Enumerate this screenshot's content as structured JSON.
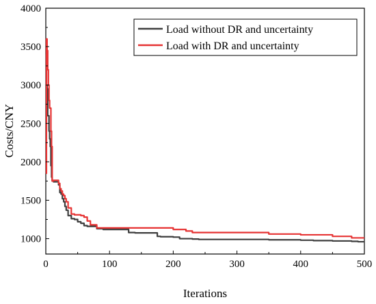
{
  "chart_data": {
    "type": "line",
    "title": "",
    "xlabel": "Iterations",
    "ylabel": "Costs/CNY",
    "xlim": [
      0,
      500
    ],
    "ylim": [
      800,
      4000
    ],
    "xticks": [
      0,
      100,
      200,
      300,
      400,
      500
    ],
    "yticks": [
      1000,
      1500,
      2000,
      2500,
      3000,
      3500,
      4000
    ],
    "grid": false,
    "legend_position": "top-right",
    "series": [
      {
        "name": "Load without DR and uncertainty",
        "color": "#3d3d3d",
        "x": [
          0,
          1,
          2,
          3,
          4,
          5,
          6,
          7,
          8,
          9,
          10,
          12,
          14,
          16,
          20,
          22,
          24,
          26,
          28,
          30,
          32,
          35,
          40,
          45,
          50,
          55,
          60,
          65,
          70,
          80,
          90,
          100,
          110,
          120,
          130,
          140,
          150,
          160,
          170,
          175,
          180,
          200,
          210,
          220,
          230,
          240,
          250,
          300,
          350,
          400,
          420,
          450,
          480,
          490,
          500
        ],
        "y": [
          3400,
          3000,
          2950,
          2600,
          2600,
          2400,
          2300,
          2200,
          1950,
          1800,
          1750,
          1740,
          1740,
          1740,
          1700,
          1600,
          1580,
          1520,
          1480,
          1420,
          1370,
          1300,
          1260,
          1250,
          1220,
          1200,
          1170,
          1160,
          1160,
          1130,
          1120,
          1120,
          1120,
          1120,
          1080,
          1075,
          1075,
          1075,
          1075,
          1030,
          1025,
          1020,
          1000,
          1000,
          995,
          990,
          990,
          990,
          985,
          980,
          975,
          970,
          965,
          960,
          960
        ]
      },
      {
        "name": "Load with DR and uncertainty",
        "color": "#e63232",
        "x": [
          0,
          1,
          2,
          3,
          4,
          5,
          6,
          7,
          8,
          9,
          10,
          12,
          14,
          16,
          20,
          22,
          24,
          26,
          28,
          30,
          32,
          35,
          40,
          45,
          50,
          55,
          60,
          65,
          70,
          80,
          90,
          100,
          120,
          140,
          160,
          180,
          200,
          220,
          230,
          250,
          270,
          300,
          330,
          350,
          380,
          400,
          420,
          450,
          480,
          500
        ],
        "y": [
          1850,
          3600,
          3450,
          3200,
          3000,
          2800,
          2700,
          2700,
          2400,
          2200,
          1750,
          1760,
          1760,
          1760,
          1720,
          1650,
          1620,
          1580,
          1560,
          1520,
          1480,
          1400,
          1320,
          1310,
          1310,
          1300,
          1280,
          1230,
          1180,
          1140,
          1140,
          1140,
          1140,
          1140,
          1140,
          1140,
          1120,
          1100,
          1080,
          1080,
          1080,
          1080,
          1080,
          1060,
          1060,
          1050,
          1050,
          1030,
          1010,
          1010
        ]
      }
    ]
  }
}
